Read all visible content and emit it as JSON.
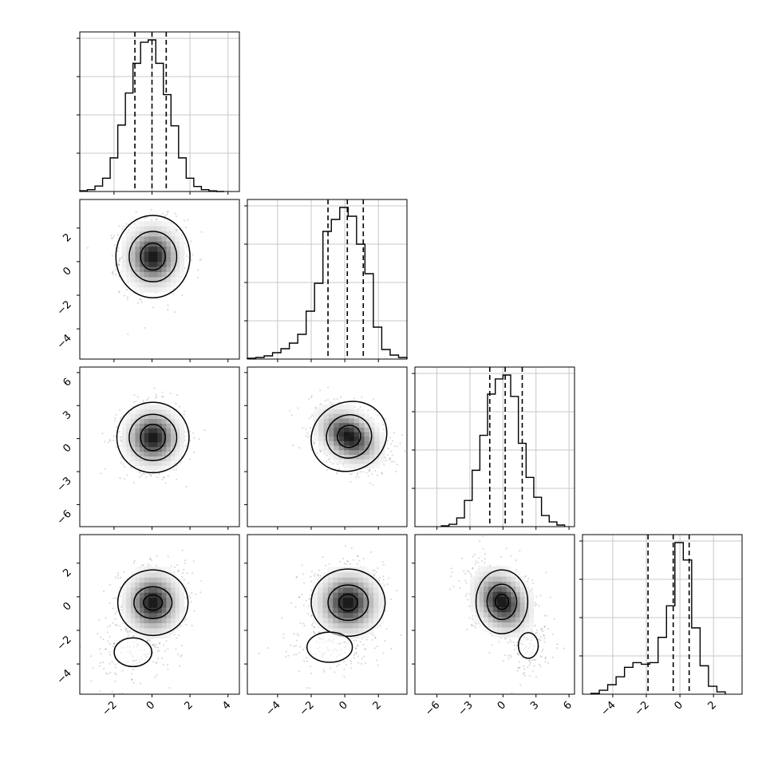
{
  "chart_data": {
    "type": "corner",
    "n_params": 4,
    "grid": true,
    "quantiles": [
      0.16,
      0.5,
      0.84
    ],
    "params": [
      {
        "range": [
          -3.8,
          4.6
        ],
        "xticks": [
          -2,
          0,
          2,
          4
        ],
        "xtick_labels": [
          "−2",
          "0",
          "2",
          "4"
        ],
        "quantile_values": [
          -0.9,
          0.0,
          0.75
        ],
        "hist": {
          "edges": [
            -3.8,
            -3.4,
            -3.0,
            -2.6,
            -2.2,
            -1.8,
            -1.4,
            -1.0,
            -0.6,
            -0.2,
            0.2,
            0.6,
            1.0,
            1.4,
            1.8,
            2.2,
            2.6,
            3.0,
            3.4,
            3.8
          ],
          "counts": [
            0.005,
            0.012,
            0.035,
            0.085,
            0.215,
            0.425,
            0.63,
            0.82,
            0.955,
            0.97,
            0.82,
            0.62,
            0.42,
            0.215,
            0.085,
            0.032,
            0.012,
            0.004,
            0.0
          ]
        },
        "hist_max_fraction": 0.95
      },
      {
        "range": [
          -5.8,
          3.7
        ],
        "yticks": [
          -4,
          -2,
          0,
          2
        ],
        "ytick_labels": [
          "−4",
          "−2",
          "0",
          "2"
        ],
        "xticks": [
          -4,
          -2,
          0,
          2
        ],
        "xtick_labels": [
          "−4",
          "−2",
          "0",
          "2"
        ],
        "quantile_values": [
          -1.0,
          0.15,
          1.1
        ],
        "hist": {
          "edges": [
            -5.8,
            -5.3,
            -4.8,
            -4.3,
            -3.8,
            -3.3,
            -2.8,
            -2.3,
            -1.8,
            -1.3,
            -0.8,
            -0.3,
            0.2,
            0.7,
            1.2,
            1.7,
            2.2,
            2.7,
            3.2,
            3.7
          ],
          "counts": [
            0.005,
            0.01,
            0.02,
            0.04,
            0.065,
            0.1,
            0.155,
            0.3,
            0.475,
            0.8,
            0.875,
            0.95,
            0.895,
            0.72,
            0.535,
            0.2,
            0.06,
            0.025,
            0.01
          ]
        },
        "hist_max_fraction": 0.95
      },
      {
        "range": [
          -8,
          6.5
        ],
        "yticks": [
          -6,
          -3,
          0,
          3,
          6
        ],
        "ytick_labels": [
          "−6",
          "−3",
          "0",
          "3",
          "6"
        ],
        "xticks": [
          -6,
          -3,
          0,
          3,
          6
        ],
        "xtick_labels": [
          "−6",
          "−3",
          "0",
          "3",
          "6"
        ],
        "quantile_values": [
          -1.2,
          0.2,
          1.75
        ],
        "hist": {
          "edges": [
            -5.6,
            -4.9,
            -4.2,
            -3.5,
            -2.8,
            -2.1,
            -1.4,
            -0.7,
            0.0,
            0.7,
            1.4,
            2.1,
            2.8,
            3.5,
            4.2,
            4.9,
            5.6
          ],
          "counts": [
            0.005,
            0.015,
            0.055,
            0.165,
            0.355,
            0.575,
            0.835,
            0.93,
            0.955,
            0.82,
            0.525,
            0.31,
            0.185,
            0.07,
            0.03,
            0.01
          ]
        },
        "hist_max_fraction": 0.95
      },
      {
        "range": [
          -5.8,
          3.7
        ],
        "yticks": [
          -4,
          -2,
          0,
          2
        ],
        "ytick_labels": [
          "−4",
          "−2",
          "0",
          "2"
        ],
        "xticks": [
          -4,
          -2,
          0,
          2
        ],
        "xtick_labels": [
          "−4",
          "−2",
          "0",
          "2"
        ],
        "quantile_values": [
          -1.9,
          -0.4,
          0.55
        ],
        "hist": {
          "edges": [
            -5.3,
            -4.8,
            -4.3,
            -3.8,
            -3.3,
            -2.8,
            -2.3,
            -1.8,
            -1.3,
            -0.8,
            -0.3,
            0.2,
            0.7,
            1.2,
            1.7,
            2.2,
            2.7
          ],
          "counts": [
            0.005,
            0.025,
            0.06,
            0.11,
            0.17,
            0.2,
            0.19,
            0.2,
            0.36,
            0.56,
            0.96,
            0.85,
            0.42,
            0.18,
            0.05,
            0.015
          ]
        },
        "hist_max_fraction": 0.95
      }
    ],
    "pairs": [
      {
        "row": 1,
        "col": 0,
        "center": [
          0.05,
          0.3
        ],
        "sigma": [
          0.85,
          1.1
        ],
        "rho": 0.0,
        "contours": [
          [
            0.65,
            0.8,
            0.0
          ],
          [
            1.25,
            1.5,
            0.0
          ],
          [
            1.95,
            2.45,
            0.0
          ]
        ],
        "tail": null
      },
      {
        "row": 2,
        "col": 0,
        "center": [
          0.05,
          0.1
        ],
        "sigma": [
          0.85,
          1.55
        ],
        "rho": 0.0,
        "contours": [
          [
            0.65,
            1.2,
            0.0
          ],
          [
            1.25,
            2.1,
            0.0
          ],
          [
            1.9,
            3.2,
            0.0
          ]
        ],
        "tail": null
      },
      {
        "row": 2,
        "col": 1,
        "center": [
          0.25,
          0.2
        ],
        "sigma": [
          1.1,
          1.5
        ],
        "rho": -0.35,
        "contours": [
          [
            0.7,
            1.0,
            -0.3
          ],
          [
            1.35,
            1.95,
            -0.35
          ],
          [
            2.3,
            3.1,
            -0.45
          ]
        ],
        "tail": null
      },
      {
        "row": 3,
        "col": 0,
        "center": [
          0.05,
          -0.35
        ],
        "sigma": [
          0.85,
          1.1
        ],
        "rho": 0.0,
        "contours": [
          [
            0.5,
            0.45,
            0.0
          ],
          [
            1.0,
            0.95,
            0.0
          ],
          [
            1.85,
            1.95,
            0.0
          ]
        ],
        "tail": [
          -1.0,
          -3.3,
          1.1,
          0.95
        ]
      },
      {
        "row": 3,
        "col": 1,
        "center": [
          0.2,
          -0.35
        ],
        "sigma": [
          1.1,
          1.1
        ],
        "rho": 0.0,
        "contours": [
          [
            0.55,
            0.5,
            0.0
          ],
          [
            1.2,
            1.05,
            0.0
          ],
          [
            2.2,
            2.0,
            0.0
          ]
        ],
        "tail": [
          -0.9,
          -3.0,
          1.5,
          1.0
        ]
      },
      {
        "row": 3,
        "col": 2,
        "center": [
          -0.1,
          -0.3
        ],
        "sigma": [
          1.5,
          1.1
        ],
        "rho": -0.25,
        "contours": [
          [
            0.6,
            0.45,
            0.0
          ],
          [
            1.35,
            1.05,
            0.0
          ],
          [
            2.35,
            1.9,
            0.0
          ]
        ],
        "tail": [
          2.3,
          -2.9,
          1.0,
          0.85
        ]
      }
    ]
  }
}
